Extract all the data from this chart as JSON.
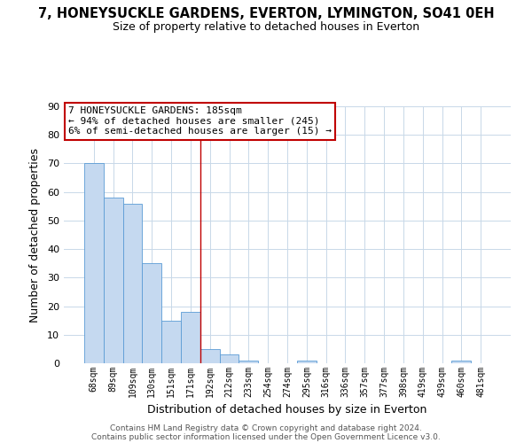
{
  "title": "7, HONEYSUCKLE GARDENS, EVERTON, LYMINGTON, SO41 0EH",
  "subtitle": "Size of property relative to detached houses in Everton",
  "xlabel": "Distribution of detached houses by size in Everton",
  "ylabel": "Number of detached properties",
  "bar_labels": [
    "68sqm",
    "89sqm",
    "109sqm",
    "130sqm",
    "151sqm",
    "171sqm",
    "192sqm",
    "212sqm",
    "233sqm",
    "254sqm",
    "274sqm",
    "295sqm",
    "316sqm",
    "336sqm",
    "357sqm",
    "377sqm",
    "398sqm",
    "419sqm",
    "439sqm",
    "460sqm",
    "481sqm"
  ],
  "bar_values": [
    70,
    58,
    56,
    35,
    15,
    18,
    5,
    3,
    1,
    0,
    0,
    1,
    0,
    0,
    0,
    0,
    0,
    0,
    0,
    1,
    0
  ],
  "bar_color": "#c5d9f0",
  "bar_edge_color": "#5b9bd5",
  "highlight_line_bar_index": 6,
  "highlight_color": "#c00000",
  "ylim": [
    0,
    90
  ],
  "yticks": [
    0,
    10,
    20,
    30,
    40,
    50,
    60,
    70,
    80,
    90
  ],
  "annotation_title": "7 HONEYSUCKLE GARDENS: 185sqm",
  "annotation_line1": "← 94% of detached houses are smaller (245)",
  "annotation_line2": "6% of semi-detached houses are larger (15) →",
  "annotation_box_color": "#c00000",
  "background_color": "#ffffff",
  "grid_color": "#c8d8e8",
  "footer1": "Contains HM Land Registry data © Crown copyright and database right 2024.",
  "footer2": "Contains public sector information licensed under the Open Government Licence v3.0."
}
